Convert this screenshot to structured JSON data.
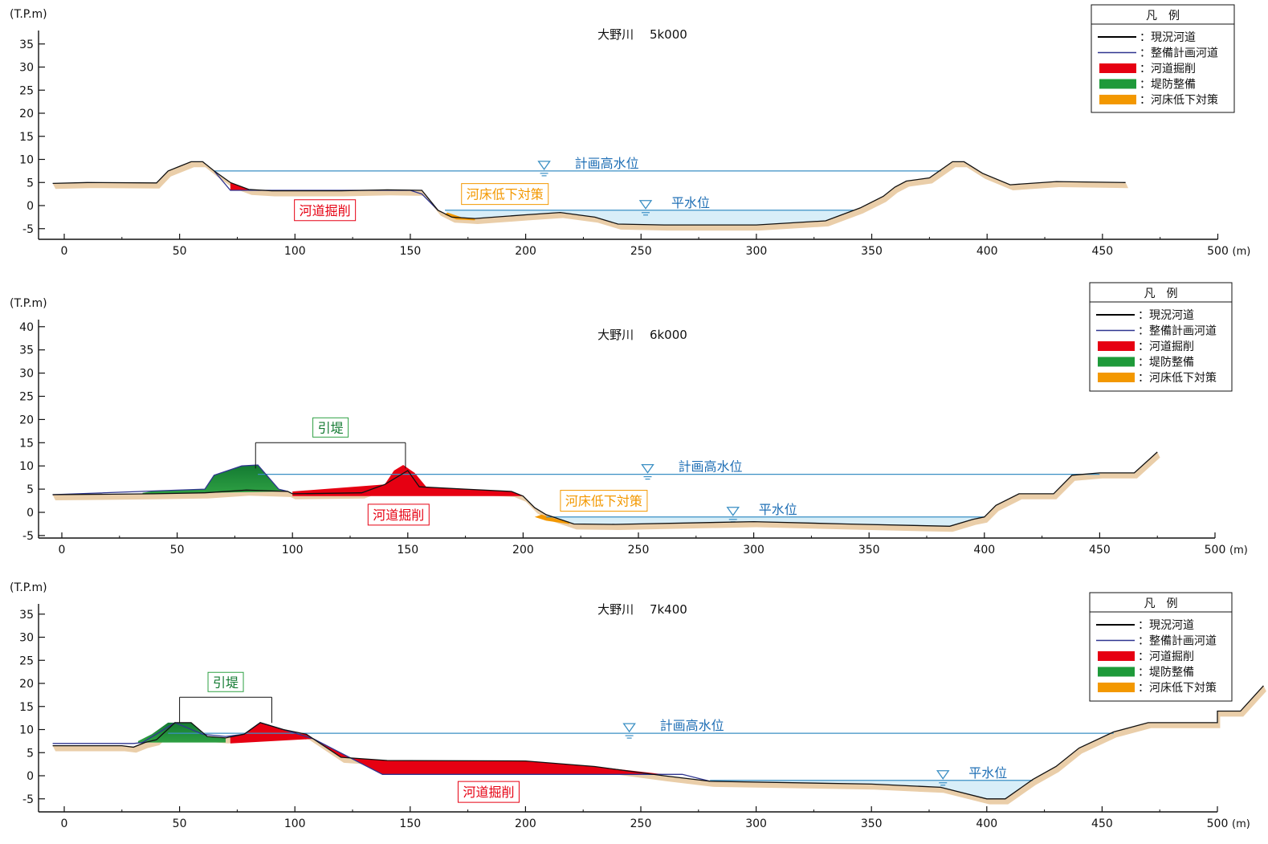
{
  "legend": {
    "title": "凡　例",
    "items": [
      {
        "label": "：現況河道",
        "color": "#000000",
        "kind": "line"
      },
      {
        "label": "：整備計画河道",
        "color": "#2f3590",
        "kind": "line"
      },
      {
        "label": "：河道掘削",
        "color": "#e60012",
        "kind": "fill"
      },
      {
        "label": "：堤防整備",
        "color": "#1e9a3a",
        "kind": "fill"
      },
      {
        "label": "：河床低下対策",
        "color": "#f39800",
        "kind": "fill"
      }
    ]
  },
  "colors": {
    "water_line": "#3a8fc4",
    "water_fill": "#d8eef8",
    "ground_shadow": "#e8c9a0",
    "excavation": "#e60012",
    "levee_bright": "#2ea043",
    "levee_dark": "#137a32",
    "bed_measure": "#f39800",
    "label_blue": "#1f6fb5"
  },
  "chart_data": [
    {
      "type": "area",
      "title": "大野川　 5k000",
      "ylabel": "(T.P.m)",
      "xunit": "(m)",
      "xlim": [
        0,
        500
      ],
      "ylim": [
        -5,
        35
      ],
      "xticks": [
        "0",
        "50",
        "100",
        "150",
        "200",
        "250",
        "300",
        "350",
        "400",
        "450",
        "500"
      ],
      "yticks": [
        "35",
        "30",
        "25",
        "20",
        "15",
        "10",
        "5",
        "0",
        "-5"
      ],
      "planned_hwl": {
        "label": "計画高水位",
        "y": 7.5,
        "x_from": 65,
        "x_to": 380,
        "marker_x": 208
      },
      "normal_wl": {
        "label": "平水位",
        "y": -1,
        "x_from": 165,
        "x_to": 342,
        "marker_x": 252
      },
      "ground": [
        [
          -5,
          4.8
        ],
        [
          10,
          5
        ],
        [
          40,
          4.9
        ],
        [
          45,
          7.5
        ],
        [
          50,
          8.5
        ],
        [
          55,
          9.5
        ],
        [
          60,
          9.5
        ],
        [
          65,
          7.5
        ],
        [
          72,
          5
        ],
        [
          80,
          3.5
        ],
        [
          90,
          3.2
        ],
        [
          120,
          3.2
        ],
        [
          140,
          3.4
        ],
        [
          155,
          3.3
        ],
        [
          162,
          -1
        ],
        [
          168,
          -2.5
        ],
        [
          178,
          -2.8
        ],
        [
          200,
          -2
        ],
        [
          215,
          -1.5
        ],
        [
          230,
          -2.5
        ],
        [
          240,
          -4
        ],
        [
          260,
          -4.2
        ],
        [
          300,
          -4.2
        ],
        [
          330,
          -3.3
        ],
        [
          345,
          -0.5
        ],
        [
          355,
          2
        ],
        [
          360,
          4
        ],
        [
          365,
          5.3
        ],
        [
          375,
          6
        ],
        [
          385,
          9.5
        ],
        [
          390,
          9.5
        ],
        [
          398,
          7
        ],
        [
          410,
          4.5
        ],
        [
          430,
          5.2
        ],
        [
          460,
          5
        ]
      ],
      "planned": [
        [
          65,
          7.5
        ],
        [
          72,
          3.3
        ],
        [
          150,
          3.3
        ],
        [
          155,
          2.5
        ],
        [
          162,
          -1
        ]
      ],
      "excavation": [
        [
          [
            72,
            5
          ],
          [
            80,
            3.5
          ],
          [
            90,
            3.2
          ],
          [
            120,
            3.2
          ],
          [
            140,
            3.4
          ],
          [
            155,
            3.3
          ],
          [
            155,
            3.3
          ],
          [
            150,
            3.3
          ],
          [
            72,
            3.3
          ]
        ]
      ],
      "levee": [],
      "bed_measure": [
        [
          [
            166,
            -1.5
          ],
          [
            172,
            -2.5
          ],
          [
            178,
            -2.8
          ],
          [
            178,
            -3.2
          ],
          [
            170,
            -3.0
          ],
          [
            165,
            -2
          ]
        ]
      ],
      "labels": [
        {
          "text": "河道掘削",
          "kind": "excavation",
          "x": 113,
          "y": -1
        },
        {
          "text": "河床低下対策",
          "kind": "bed",
          "x": 191,
          "y": 2.5
        }
      ],
      "spans": []
    },
    {
      "type": "area",
      "title": "大野川　 6k000",
      "ylabel": "(T.P.m)",
      "xunit": "(m)",
      "xlim": [
        0,
        500
      ],
      "ylim": [
        -5,
        40
      ],
      "xticks": [
        "0",
        "50",
        "100",
        "150",
        "200",
        "250",
        "300",
        "350",
        "400",
        "450",
        "500"
      ],
      "yticks": [
        "40",
        "35",
        "30",
        "25",
        "20",
        "15",
        "10",
        "5",
        "0",
        "-5"
      ],
      "planned_hwl": {
        "label": "計画高水位",
        "y": 8.2,
        "x_from": 85,
        "x_to": 450,
        "marker_x": 254
      },
      "normal_wl": {
        "label": "平水位",
        "y": -1,
        "x_from": 210,
        "x_to": 400,
        "marker_x": 291
      },
      "ground": [
        [
          -4,
          3.8
        ],
        [
          40,
          4
        ],
        [
          62,
          4.2
        ],
        [
          80,
          4.8
        ],
        [
          98,
          4.5
        ],
        [
          100,
          4
        ],
        [
          130,
          4.2
        ],
        [
          140,
          6
        ],
        [
          150,
          9
        ],
        [
          155,
          5.5
        ],
        [
          175,
          5
        ],
        [
          195,
          4.5
        ],
        [
          200,
          3.5
        ],
        [
          205,
          1
        ],
        [
          210,
          -0.5
        ],
        [
          222,
          -2.5
        ],
        [
          240,
          -2.6
        ],
        [
          300,
          -2
        ],
        [
          340,
          -2.5
        ],
        [
          385,
          -3
        ],
        [
          395,
          -1.5
        ],
        [
          400,
          -1
        ],
        [
          405,
          1.5
        ],
        [
          415,
          4
        ],
        [
          430,
          4
        ],
        [
          438,
          8
        ],
        [
          450,
          8.5
        ],
        [
          465,
          8.5
        ],
        [
          475,
          13
        ]
      ],
      "planned": [
        [
          -4,
          3.8
        ],
        [
          40,
          4.6
        ],
        [
          62,
          5
        ],
        [
          66,
          8
        ],
        [
          78,
          10
        ],
        [
          85,
          10.2
        ],
        [
          94,
          5
        ],
        [
          98,
          4.5
        ]
      ],
      "excavation": [
        [
          [
            100,
            4.5
          ],
          [
            140,
            6
          ],
          [
            144,
            9
          ],
          [
            148,
            10.2
          ],
          [
            153,
            8.5
          ],
          [
            158,
            5.5
          ],
          [
            175,
            5
          ],
          [
            195,
            4.5
          ],
          [
            200,
            3.5
          ],
          [
            100,
            3.5
          ]
        ]
      ],
      "levee": [
        [
          [
            35,
            4.2
          ],
          [
            40,
            4.6
          ],
          [
            62,
            5
          ],
          [
            66,
            8
          ],
          [
            78,
            10
          ],
          [
            85,
            10.2
          ],
          [
            94,
            5
          ],
          [
            98,
            4.5
          ],
          [
            62,
            4.2
          ],
          [
            35,
            4
          ]
        ]
      ],
      "bed_measure": [
        [
          [
            208,
            -0.5
          ],
          [
            215,
            -1.5
          ],
          [
            220,
            -2
          ],
          [
            220,
            -2.5
          ],
          [
            210,
            -1.8
          ],
          [
            205,
            -1
          ]
        ]
      ],
      "labels": [
        {
          "text": "河道掘削",
          "kind": "excavation",
          "x": 146,
          "y": -0.5
        },
        {
          "text": "河床低下対策",
          "kind": "bed",
          "x": 235,
          "y": 2.5
        }
      ],
      "spans": [
        {
          "text": "引堤",
          "x_from": 84,
          "x_to": 149,
          "y": 15
        }
      ]
    },
    {
      "type": "area",
      "title": "大野川　 7k400",
      "ylabel": "(T.P.m)",
      "xunit": "(m)",
      "xlim": [
        0,
        500
      ],
      "ylim": [
        -5,
        35
      ],
      "xticks": [
        "0",
        "50",
        "100",
        "150",
        "200",
        "250",
        "300",
        "350",
        "400",
        "450",
        "500"
      ],
      "yticks": [
        "35",
        "30",
        "25",
        "20",
        "15",
        "10",
        "5",
        "0",
        "-5"
      ],
      "planned_hwl": {
        "label": "計画高水位",
        "y": 9.2,
        "x_from": 45,
        "x_to": 455,
        "marker_x": 245
      },
      "normal_wl": {
        "label": "平水位",
        "y": -1,
        "x_from": 280,
        "x_to": 420,
        "marker_x": 381
      },
      "ground": [
        [
          -5,
          6.5
        ],
        [
          25,
          6.5
        ],
        [
          30,
          6.2
        ],
        [
          35,
          7.2
        ],
        [
          40,
          7.8
        ],
        [
          48,
          11.5
        ],
        [
          55,
          11.5
        ],
        [
          62,
          8.5
        ],
        [
          70,
          8.2
        ],
        [
          78,
          9
        ],
        [
          85,
          11.5
        ],
        [
          95,
          10
        ],
        [
          105,
          9
        ],
        [
          120,
          4
        ],
        [
          140,
          3.3
        ],
        [
          200,
          3.2
        ],
        [
          230,
          2
        ],
        [
          260,
          0
        ],
        [
          280,
          -1.2
        ],
        [
          350,
          -1.8
        ],
        [
          380,
          -2.5
        ],
        [
          400,
          -5
        ],
        [
          408,
          -5
        ],
        [
          420,
          -0.8
        ],
        [
          430,
          2
        ],
        [
          440,
          6
        ],
        [
          455,
          9.5
        ],
        [
          470,
          11.5
        ],
        [
          500,
          11.5
        ],
        [
          500,
          14
        ],
        [
          510,
          14
        ],
        [
          520,
          19.5
        ]
      ],
      "planned": [
        [
          -5,
          7
        ],
        [
          30,
          7
        ],
        [
          34,
          7.2
        ],
        [
          48,
          11.5
        ],
        [
          60,
          9
        ],
        [
          70,
          8.5
        ],
        [
          78,
          9
        ],
        [
          85,
          11.5
        ],
        [
          95,
          10
        ],
        [
          108,
          8
        ],
        [
          138,
          0.3
        ],
        [
          268,
          0.3
        ],
        [
          280,
          -1.2
        ]
      ],
      "excavation": [
        [
          [
            72,
            8.5
          ],
          [
            78,
            9
          ],
          [
            85,
            11.5
          ],
          [
            95,
            10
          ],
          [
            105,
            9
          ],
          [
            120,
            4
          ],
          [
            140,
            3.3
          ],
          [
            200,
            3.2
          ],
          [
            230,
            2
          ],
          [
            260,
            0.3
          ],
          [
            138,
            0.3
          ],
          [
            108,
            8
          ],
          [
            72,
            7
          ]
        ]
      ],
      "levee": [
        [
          [
            32,
            7.5
          ],
          [
            38,
            9
          ],
          [
            45,
            11.5
          ],
          [
            55,
            11.5
          ],
          [
            62,
            8.5
          ],
          [
            70,
            8.2
          ],
          [
            70,
            7.2
          ],
          [
            32,
            7.2
          ]
        ]
      ],
      "bed_measure": [],
      "labels": [
        {
          "text": "河道掘削",
          "kind": "excavation",
          "x": 184,
          "y": -3.5
        }
      ],
      "spans": [
        {
          "text": "引堤",
          "x_from": 50,
          "x_to": 90,
          "y": 17
        }
      ]
    }
  ]
}
